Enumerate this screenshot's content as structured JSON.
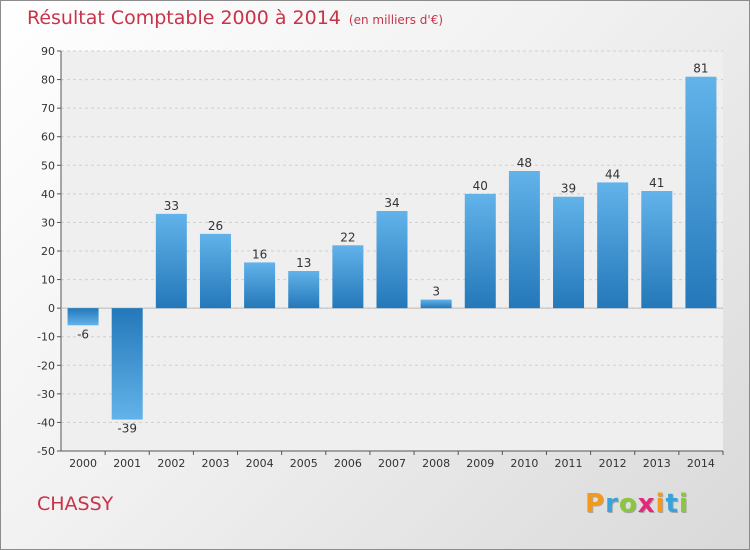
{
  "title": "Résultat Comptable 2000 à 2014",
  "subtitle": "(en milliers d'€)",
  "commune": "CHASSY",
  "brand": {
    "text": "Proxiti",
    "letter_colors": [
      "#f39a1d",
      "#3aa2d8",
      "#8cc63f",
      "#e5267b",
      "#f39a1d",
      "#3aa2d8",
      "#8cc63f"
    ]
  },
  "colors": {
    "bar_light": "#62b3ea",
    "bar_dark": "#2478b9",
    "plot_bg": "#efefef",
    "grid": "#cfcfcf",
    "title": "#c8334a"
  },
  "chart_data": {
    "type": "bar",
    "categories": [
      "2000",
      "2001",
      "2002",
      "2003",
      "2004",
      "2005",
      "2006",
      "2007",
      "2008",
      "2009",
      "2010",
      "2011",
      "2012",
      "2013",
      "2014"
    ],
    "values": [
      -6,
      -39,
      33,
      26,
      16,
      13,
      22,
      34,
      3,
      40,
      48,
      39,
      44,
      41,
      81
    ],
    "ylim": [
      -50,
      90
    ],
    "yticks": [
      -50,
      -40,
      -30,
      -20,
      -10,
      0,
      10,
      20,
      30,
      40,
      50,
      60,
      70,
      80,
      90
    ],
    "grid": true,
    "title": "Résultat Comptable 2000 à 2014",
    "xlabel": "",
    "ylabel": ""
  }
}
